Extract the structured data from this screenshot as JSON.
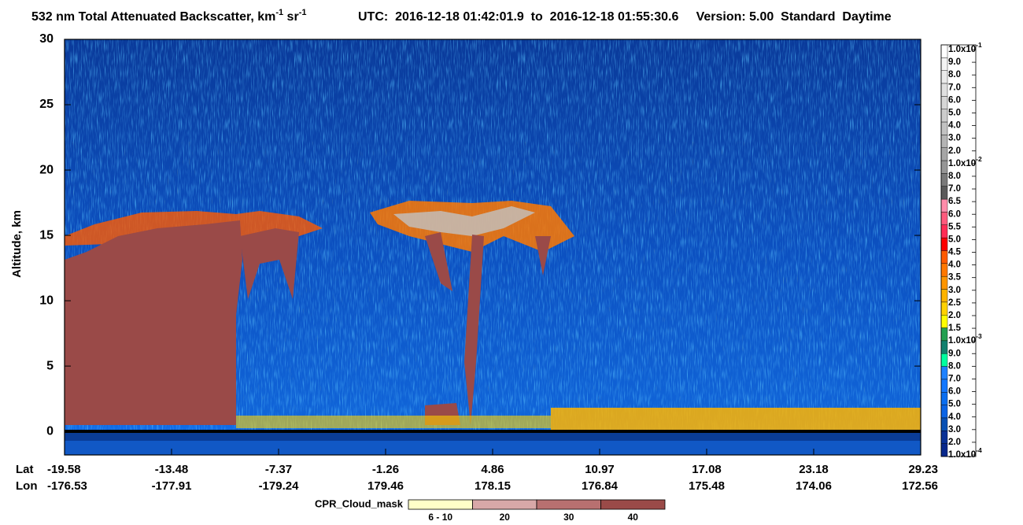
{
  "chart_data": {
    "type": "curtain",
    "title": [
      "532 nm Total Attenuated Backscatter, km",
      "-1",
      " sr",
      "-1"
    ],
    "subtitle": "UTC:  2016-12-18 01:42:01.9  to  2016-12-18 01:55:30.6     Version: 5.00  Standard  Daytime",
    "ylabel": "Altitude, km",
    "ylim": [
      -1.8,
      30
    ],
    "yticks": [
      0,
      5,
      10,
      15,
      20,
      25,
      30
    ],
    "lat_label": "Lat",
    "lon_label": "Lon",
    "lat": [
      -19.58,
      -13.48,
      -7.37,
      -1.26,
      4.86,
      10.97,
      17.08,
      23.18,
      29.23
    ],
    "lon": [
      -176.53,
      -177.91,
      -179.24,
      179.46,
      178.15,
      176.84,
      175.48,
      174.06,
      172.56
    ],
    "colorbar": {
      "labels": [
        {
          "text": "1.0x10",
          "sup": "-1"
        },
        "9.0",
        "8.0",
        "7.0",
        "6.0",
        "5.0",
        "4.0",
        "3.0",
        "2.0",
        {
          "text": "1.0x10",
          "sup": "-2"
        },
        "8.0",
        "7.0",
        "6.5",
        "6.0",
        "5.5",
        "5.0",
        "4.5",
        "4.0",
        "3.5",
        "3.0",
        "2.5",
        "2.0",
        "1.5",
        {
          "text": "1.0x10",
          "sup": "-3"
        },
        "9.0",
        "8.0",
        "7.0",
        "6.0",
        "5.0",
        "4.0",
        "3.0",
        "2.0",
        {
          "text": "1.0x10",
          "sup": "-4"
        }
      ],
      "colors": [
        "#ffffff",
        "#f4f4f4",
        "#eaeaea",
        "#e0e0e0",
        "#d6d6d6",
        "#cccccc",
        "#c2c2c2",
        "#b4b4b4",
        "#a6a6a6",
        "#969696",
        "#7a7a7a",
        "#5a5a5a",
        "#ff8caa",
        "#ff5a7d",
        "#ff2d55",
        "#ff0000",
        "#ff5a00",
        "#ff7800",
        "#ff9600",
        "#ffb400",
        "#ffd200",
        "#ffff00",
        "#24a050",
        "#12806e",
        "#00ffa0",
        "#1e82ff",
        "#1478ff",
        "#0a6ef0",
        "#0a64e6",
        "#0850b4",
        "#0a3296",
        "#08288c"
      ]
    },
    "cloud_mask": {
      "title": "CPR_Cloud_mask",
      "labels": [
        "6 - 10",
        "20",
        "30",
        "40"
      ],
      "colors": [
        "#ffffc8",
        "#d8a8a8",
        "#b87070",
        "#9a4a48"
      ]
    }
  }
}
